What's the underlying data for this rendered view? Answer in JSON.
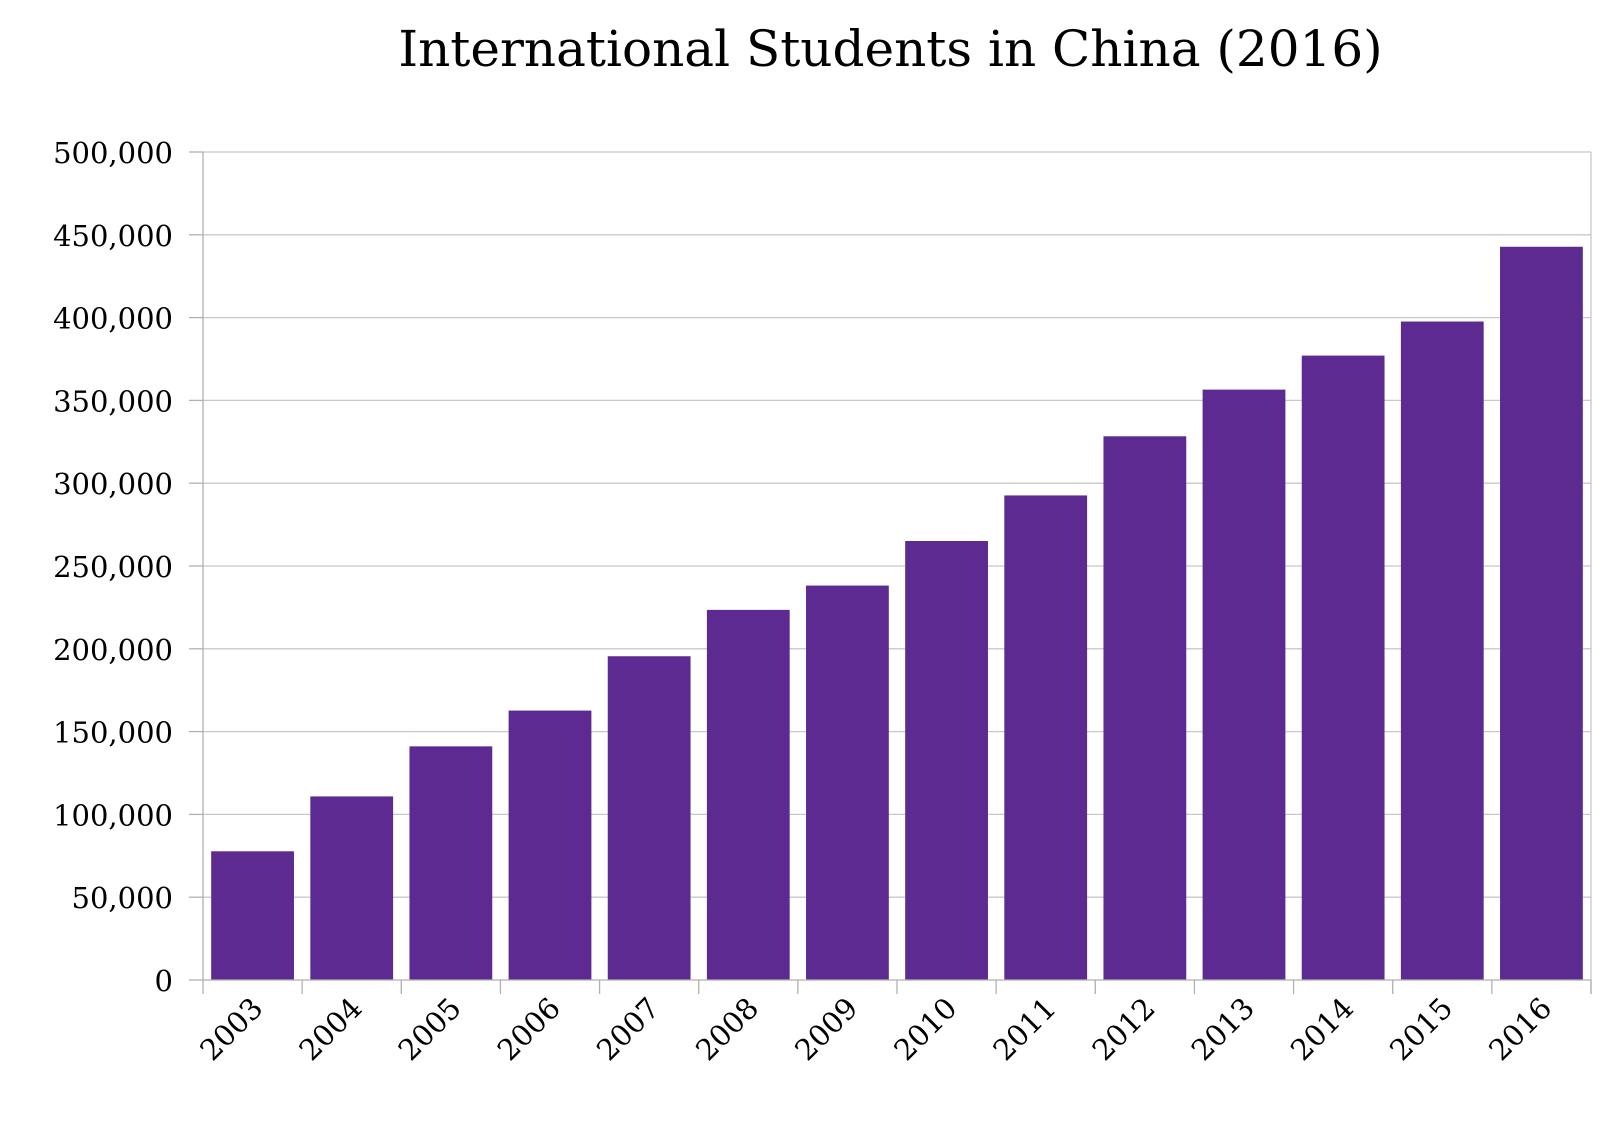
{
  "chart_data": {
    "type": "bar",
    "title": "International Students in China (2016)",
    "xlabel": "",
    "ylabel": "",
    "categories": [
      "2003",
      "2004",
      "2005",
      "2006",
      "2007",
      "2008",
      "2009",
      "2010",
      "2011",
      "2012",
      "2013",
      "2014",
      "2015",
      "2016"
    ],
    "values": [
      77715,
      110844,
      141087,
      162695,
      195503,
      223499,
      238184,
      265090,
      292611,
      328330,
      356499,
      377054,
      397635,
      442773
    ],
    "ylim": [
      0,
      500000
    ],
    "yticks": [
      0,
      50000,
      100000,
      150000,
      200000,
      250000,
      300000,
      350000,
      400000,
      450000,
      500000
    ],
    "ytick_labels": [
      "0",
      "50,000",
      "100,000",
      "150,000",
      "200,000",
      "250,000",
      "300,000",
      "350,000",
      "400,000",
      "450,000",
      "500,000"
    ],
    "grid": true,
    "legend": "none",
    "bar_color": "#5c2a90"
  }
}
